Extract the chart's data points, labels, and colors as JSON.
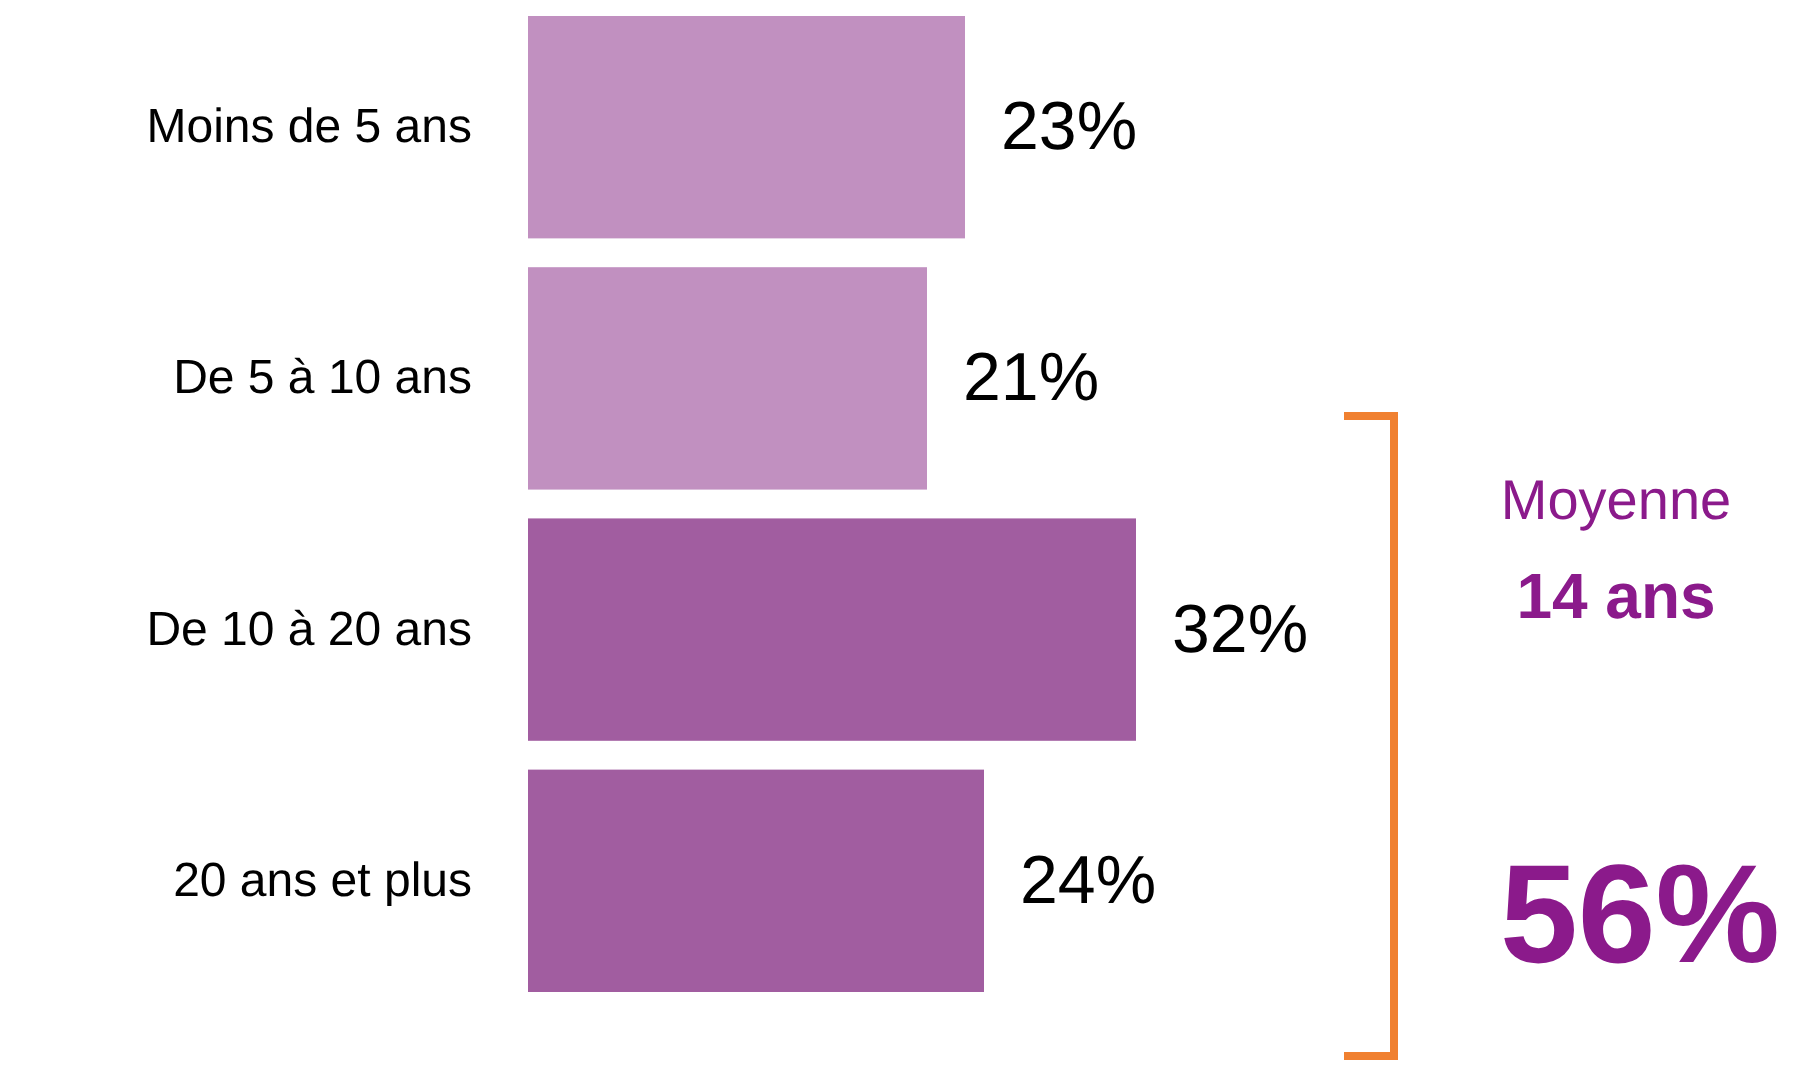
{
  "chart_data": {
    "type": "bar",
    "orientation": "horizontal",
    "categories": [
      "Moins de 5 ans",
      "De 5 à 10 ans",
      "De 10 à 20 ans",
      "20 ans et plus"
    ],
    "values": [
      23,
      21,
      32,
      24
    ],
    "colors": [
      "#c190c0",
      "#c190c0",
      "#a15da0",
      "#a15da0"
    ],
    "value_labels": [
      "23%",
      "21%",
      "32%",
      "24%"
    ],
    "annotations": [
      "Moyenne",
      "14 ans",
      "56%"
    ]
  }
}
